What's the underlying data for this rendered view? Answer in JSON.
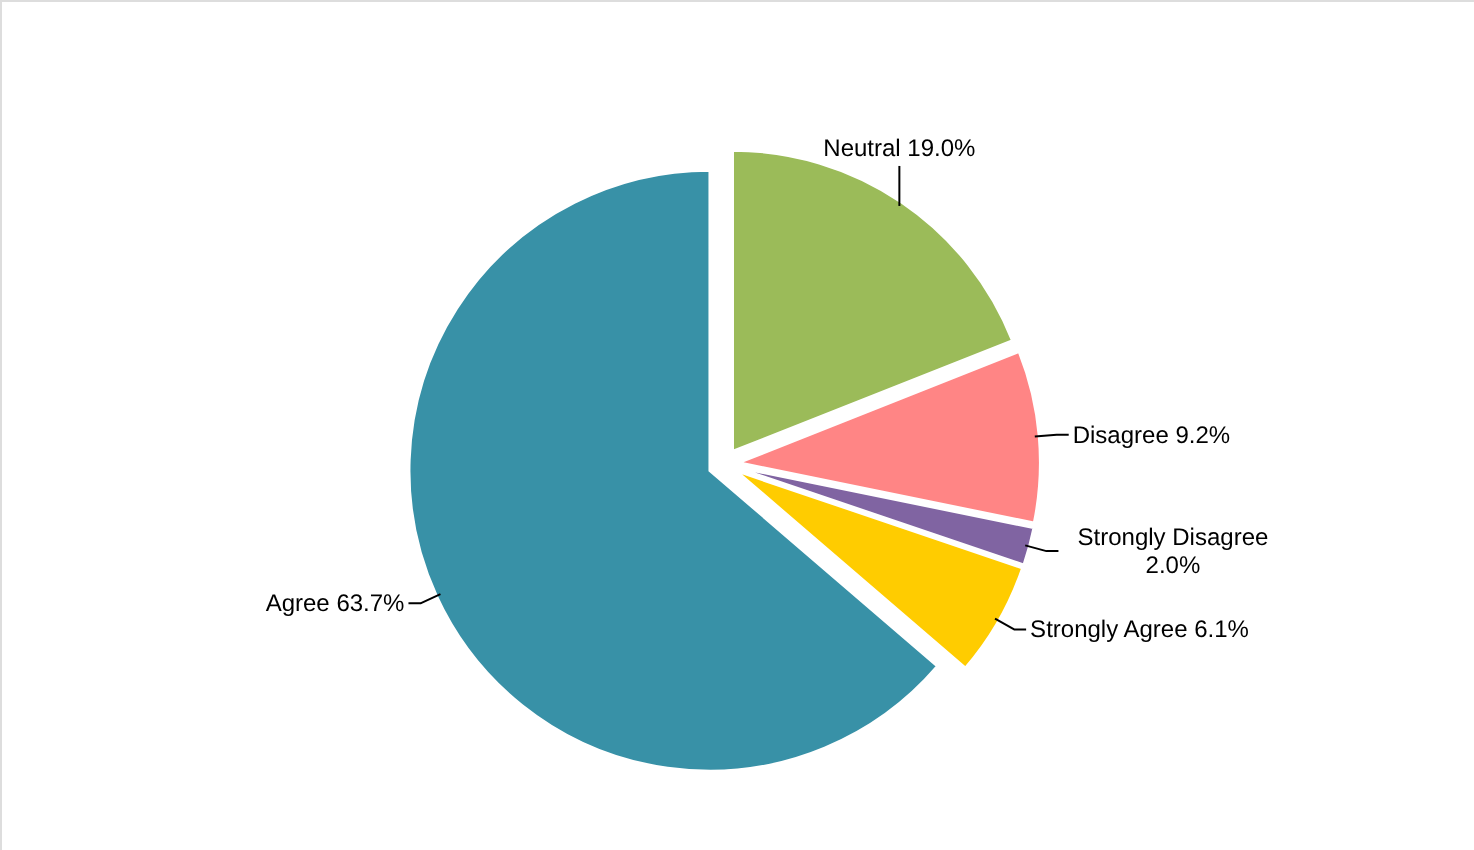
{
  "chart_data": {
    "type": "pie",
    "categories": [
      "Neutral",
      "Disagree",
      "Strongly Disagree",
      "Strongly Agree",
      "Agree"
    ],
    "values": [
      19.0,
      9.2,
      2.0,
      6.1,
      63.7
    ],
    "value_labels": [
      "19.0%",
      "9.2%",
      "2.0%",
      "6.1%",
      "63.7%"
    ],
    "colors": [
      "#9bbb59",
      "#ff8585",
      "#8064a2",
      "#ffcc00",
      "#3891a7"
    ]
  }
}
